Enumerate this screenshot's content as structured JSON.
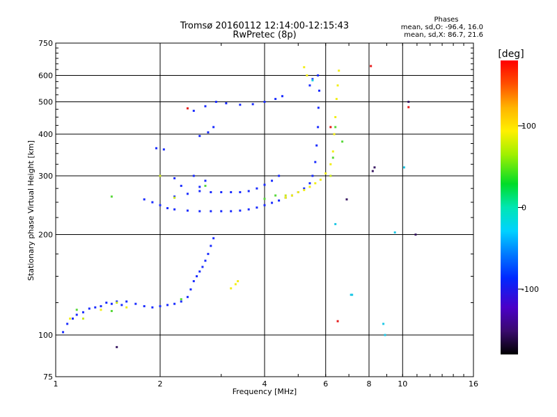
{
  "chart_data": {
    "type": "scatter",
    "title": "Tromsø 20160112 12:14:00-12:15:43",
    "subtitle": "RwPretec (8p)",
    "xlabel": "Frequency [MHz]",
    "ylabel": "Stationary phase Virtual Height [km]",
    "xscale": "log",
    "yscale": "log",
    "xlim": [
      1,
      16
    ],
    "ylim": [
      75,
      750
    ],
    "x_ticks": [
      1,
      2,
      4,
      6,
      8,
      10,
      16
    ],
    "x_tick_labels": [
      "1",
      "2",
      "4",
      "6",
      "8",
      "10",
      "16"
    ],
    "y_ticks": [
      75,
      100,
      200,
      300,
      400,
      500,
      600,
      750
    ],
    "y_tick_labels": [
      "75",
      "100",
      "200",
      "300",
      "400",
      "500",
      "600",
      "750"
    ],
    "grid": true,
    "phases_box": {
      "title": "Phases",
      "line_o": "mean, sd,O: -96.4, 16.0",
      "line_x": "mean, sd,X: 86.7, 21.6"
    },
    "colorbar": {
      "label": "[deg]",
      "range": [
        -180,
        180
      ],
      "ticks": [
        -100,
        0,
        100
      ],
      "tick_labels": [
        "-100",
        "0",
        "100"
      ]
    },
    "series": [
      {
        "phase_deg": -100,
        "color": "#1a2cff",
        "points": [
          [
            1.05,
            102
          ],
          [
            1.08,
            108
          ],
          [
            1.12,
            112
          ],
          [
            1.15,
            115
          ],
          [
            1.2,
            117
          ],
          [
            1.25,
            120
          ],
          [
            1.3,
            121
          ],
          [
            1.35,
            122
          ],
          [
            1.4,
            125
          ],
          [
            1.45,
            124
          ],
          [
            1.5,
            126
          ],
          [
            1.55,
            123
          ],
          [
            1.6,
            126
          ],
          [
            1.7,
            124
          ],
          [
            1.8,
            122
          ],
          [
            1.9,
            121
          ],
          [
            2.0,
            122
          ],
          [
            2.1,
            123
          ],
          [
            2.2,
            124
          ],
          [
            2.3,
            126
          ],
          [
            2.4,
            130
          ],
          [
            2.45,
            137
          ],
          [
            2.5,
            145
          ],
          [
            2.55,
            150
          ],
          [
            2.6,
            155
          ],
          [
            2.65,
            160
          ],
          [
            2.7,
            167
          ],
          [
            2.75,
            175
          ],
          [
            2.8,
            185
          ],
          [
            2.85,
            195
          ],
          [
            1.8,
            255
          ],
          [
            1.9,
            250
          ],
          [
            2.0,
            245
          ],
          [
            2.1,
            240
          ],
          [
            2.2,
            238
          ],
          [
            2.4,
            236
          ],
          [
            2.6,
            235
          ],
          [
            2.8,
            235
          ],
          [
            3.0,
            235
          ],
          [
            3.2,
            235
          ],
          [
            3.4,
            236
          ],
          [
            3.6,
            238
          ],
          [
            3.8,
            241
          ],
          [
            4.0,
            245
          ],
          [
            4.2,
            249
          ],
          [
            4.4,
            253
          ],
          [
            4.6,
            258
          ],
          [
            4.8,
            262
          ],
          [
            5.0,
            268
          ],
          [
            5.2,
            275
          ],
          [
            5.4,
            285
          ],
          [
            5.5,
            300
          ],
          [
            5.6,
            330
          ],
          [
            5.65,
            370
          ],
          [
            5.7,
            420
          ],
          [
            5.72,
            480
          ],
          [
            5.75,
            540
          ],
          [
            5.7,
            600
          ],
          [
            2.2,
            260
          ],
          [
            2.4,
            265
          ],
          [
            2.6,
            270
          ],
          [
            2.8,
            268
          ],
          [
            3.0,
            268
          ],
          [
            3.2,
            268
          ],
          [
            3.4,
            268
          ],
          [
            3.6,
            270
          ],
          [
            3.8,
            275
          ],
          [
            4.0,
            282
          ],
          [
            4.2,
            290
          ],
          [
            4.4,
            300
          ],
          [
            2.0,
            300
          ],
          [
            2.2,
            295
          ],
          [
            2.5,
            300
          ],
          [
            2.7,
            290
          ],
          [
            2.3,
            280
          ],
          [
            2.6,
            278
          ],
          [
            2.5,
            470
          ],
          [
            2.7,
            485
          ],
          [
            2.9,
            500
          ],
          [
            3.1,
            495
          ],
          [
            3.4,
            490
          ],
          [
            3.7,
            492
          ],
          [
            4.0,
            500
          ],
          [
            4.3,
            510
          ],
          [
            4.5,
            520
          ],
          [
            2.6,
            395
          ],
          [
            2.75,
            405
          ],
          [
            2.85,
            420
          ],
          [
            1.95,
            363
          ],
          [
            2.05,
            360
          ],
          [
            5.4,
            560
          ],
          [
            5.5,
            585
          ]
        ]
      },
      {
        "phase_deg": 100,
        "color": "#f2ee18",
        "points": [
          [
            4.6,
            258
          ],
          [
            4.8,
            262
          ],
          [
            5.0,
            268
          ],
          [
            5.2,
            272
          ],
          [
            5.4,
            278
          ],
          [
            5.6,
            285
          ],
          [
            5.8,
            292
          ],
          [
            6.0,
            305
          ],
          [
            6.2,
            325
          ],
          [
            6.3,
            355
          ],
          [
            6.35,
            400
          ],
          [
            6.4,
            450
          ],
          [
            6.45,
            510
          ],
          [
            6.5,
            560
          ],
          [
            6.55,
            620
          ],
          [
            3.2,
            138
          ],
          [
            3.3,
            142
          ],
          [
            3.35,
            145
          ],
          [
            1.1,
            112
          ],
          [
            1.35,
            119
          ],
          [
            1.6,
            121
          ],
          [
            5.2,
            635
          ],
          [
            5.3,
            600
          ]
        ]
      },
      {
        "phase_deg": 30,
        "color": "#58d83a",
        "points": [
          [
            1.15,
            119
          ],
          [
            1.45,
            118
          ],
          [
            2.3,
            128
          ],
          [
            4.0,
            256
          ],
          [
            4.3,
            262
          ],
          [
            6.3,
            340
          ],
          [
            6.4,
            420
          ],
          [
            6.7,
            380
          ],
          [
            1.45,
            260
          ],
          [
            2.7,
            280
          ]
        ]
      },
      {
        "phase_deg": 60,
        "color": "#c8e61e",
        "points": [
          [
            1.2,
            112
          ],
          [
            1.5,
            125
          ],
          [
            2.0,
            300
          ],
          [
            2.2,
            258
          ],
          [
            4.6,
            262
          ],
          [
            6.2,
            300
          ]
        ]
      },
      {
        "phase_deg": -40,
        "color": "#1ec8e6",
        "points": [
          [
            7.1,
            132
          ],
          [
            7.15,
            132
          ],
          [
            8.8,
            108
          ],
          [
            8.9,
            100
          ],
          [
            9.5,
            203
          ],
          [
            10.1,
            318
          ],
          [
            6.4,
            215
          ],
          [
            5.5,
            580
          ]
        ]
      },
      {
        "phase_deg": 170,
        "color": "#e61a1a",
        "points": [
          [
            6.5,
            110
          ],
          [
            10.4,
            482
          ],
          [
            8.1,
            640
          ],
          [
            2.4,
            478
          ],
          [
            6.2,
            420
          ]
        ]
      },
      {
        "phase_deg": -160,
        "color": "#3a1a64",
        "points": [
          [
            8.2,
            310
          ],
          [
            8.3,
            318
          ],
          [
            10.9,
            200
          ],
          [
            10.4,
            500
          ],
          [
            6.9,
            255
          ],
          [
            1.5,
            92
          ]
        ]
      }
    ]
  }
}
